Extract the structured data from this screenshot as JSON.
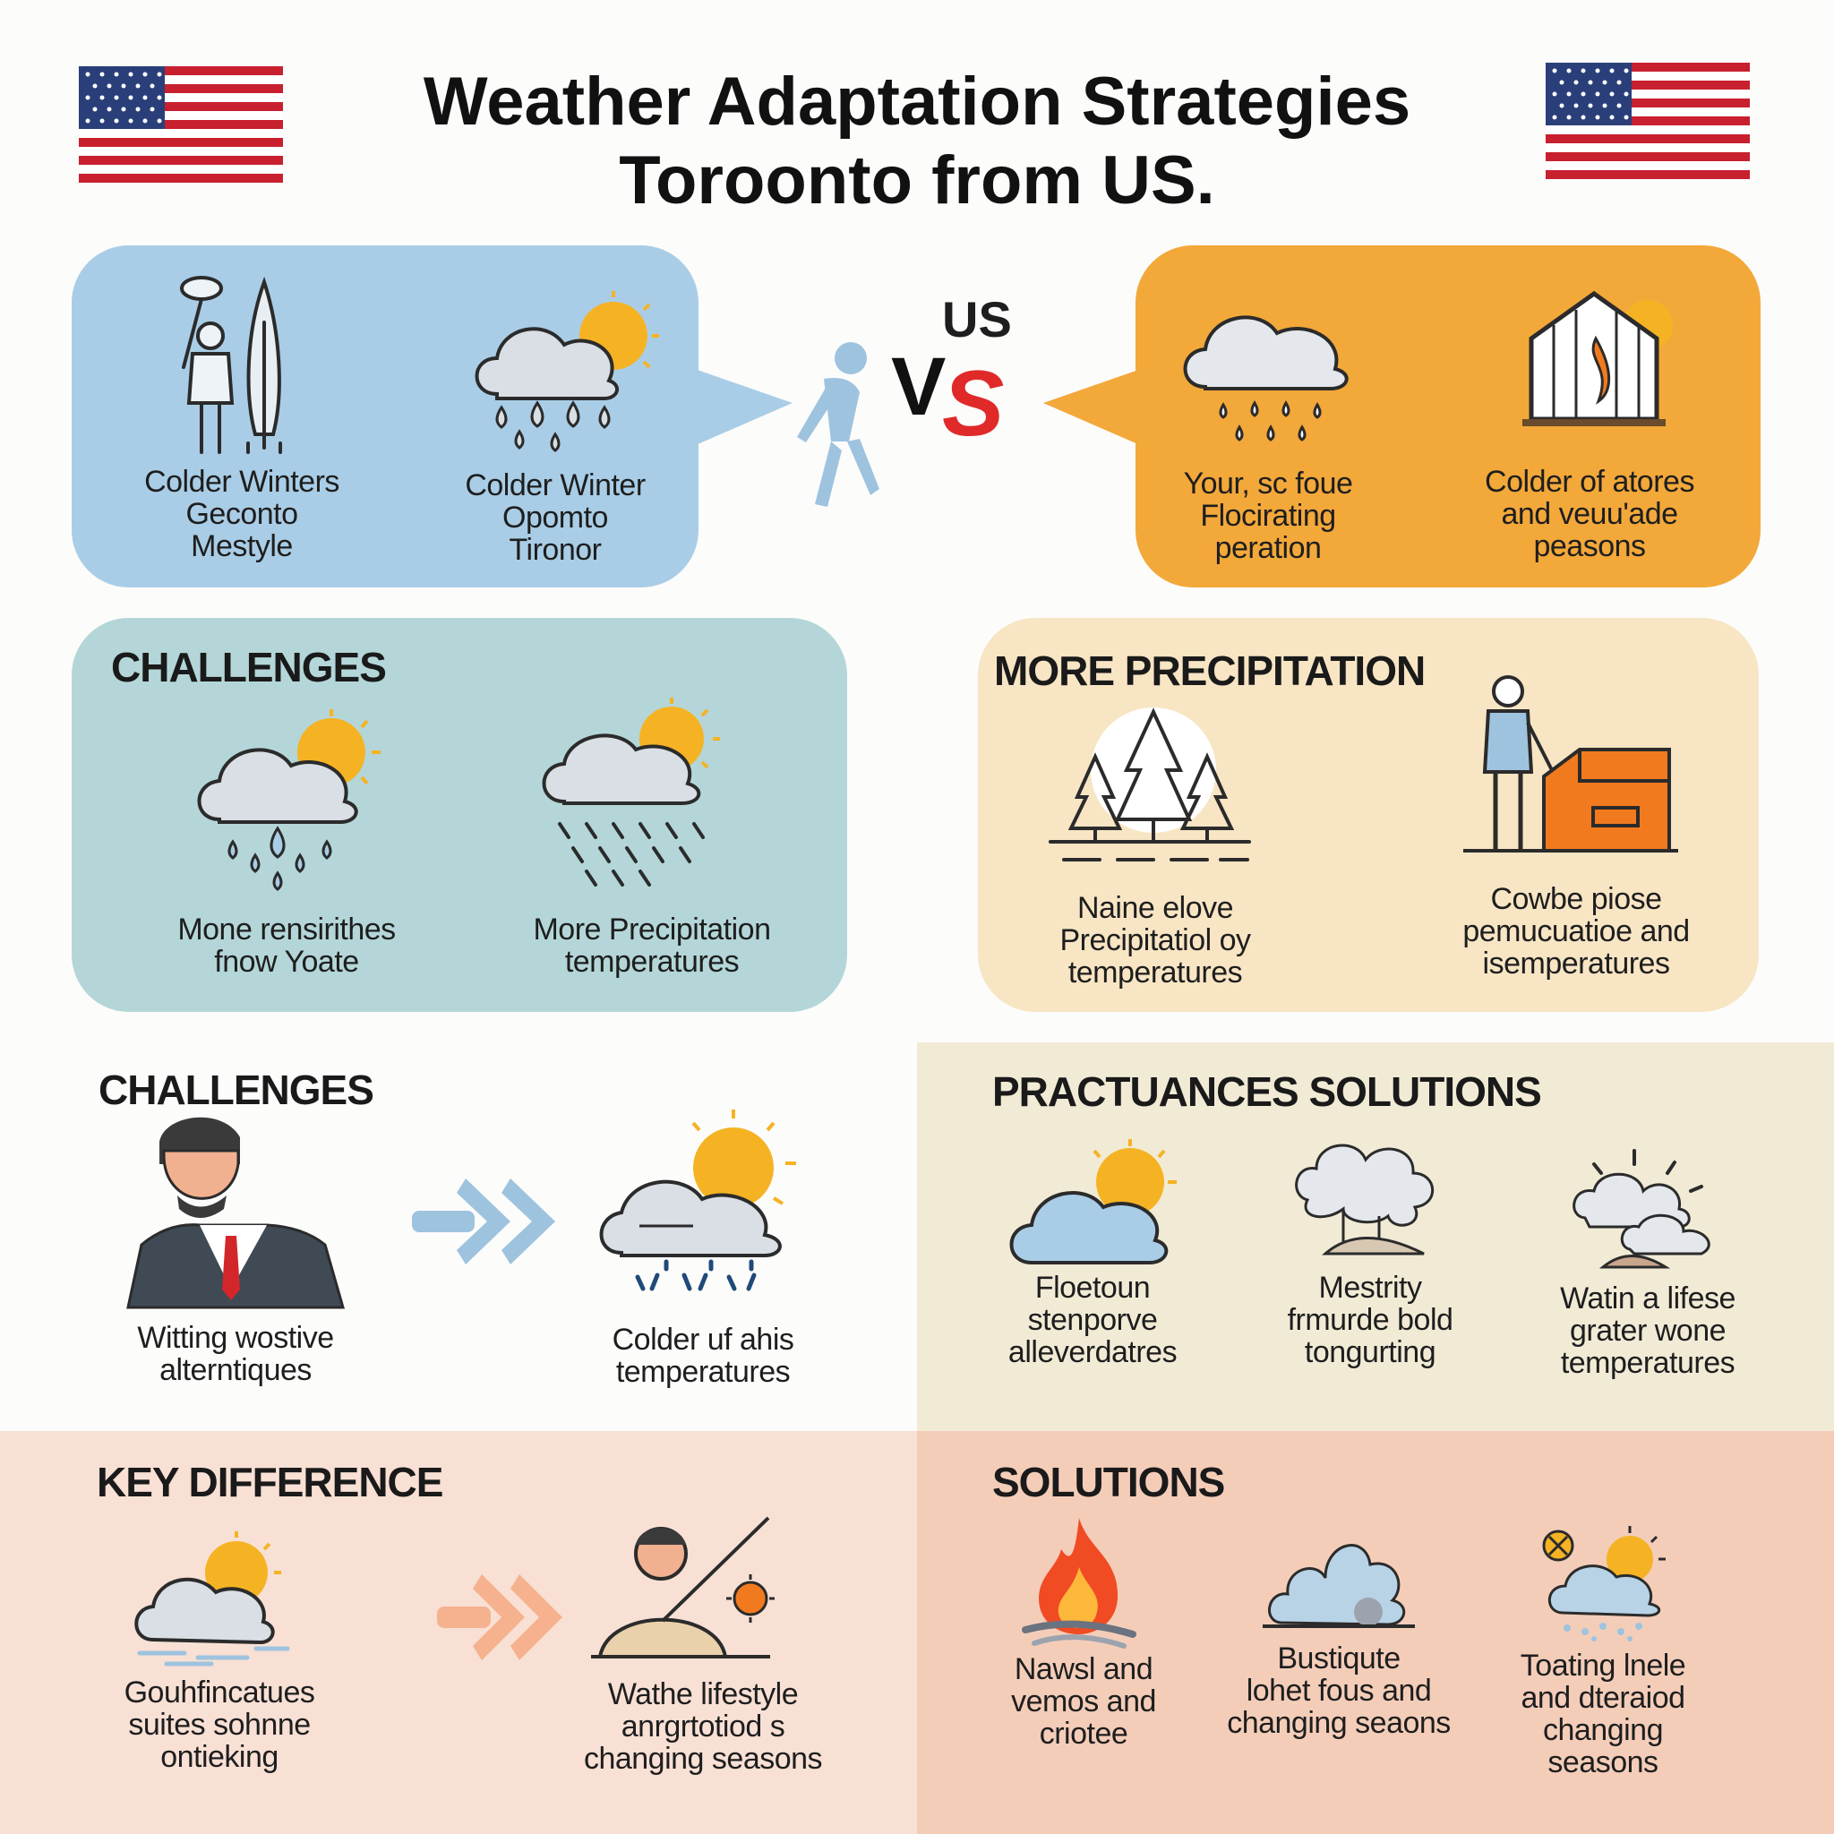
{
  "title": {
    "line1": "Weather Adaptation Strategies",
    "line2": "Toroonto from US."
  },
  "colors": {
    "blue_panel": "#a9cde6",
    "orange_panel": "#f3a83a",
    "teal_panel": "#b4d6d8",
    "cream_panel": "#f8e5c4",
    "beige_band": "#f1ebd6",
    "pink_left": "#f8e0d5",
    "pink_right": "#f4cdb9",
    "vs_red": "#e02a2a"
  },
  "header": {
    "left_flag": "us-flag-icon",
    "right_flag": "us-flag-icon"
  },
  "vs": {
    "label_us": "US",
    "label_v": "V",
    "label_s": "S"
  },
  "blue_panel": {
    "items": [
      {
        "icon": "person-umbrella-icon",
        "label": "Colder Winters\nGeconto\nMestyle"
      },
      {
        "icon": "cloud-rain-sun-icon",
        "label": "Colder Winter\nOpomto\nTironor"
      }
    ]
  },
  "orange_panel": {
    "items": [
      {
        "icon": "cloud-rain-icon",
        "label": "Your, sc foue\nFlocirating\nperation"
      },
      {
        "icon": "house-fire-icon",
        "label": "Colder of atores\nand veuu'ade\npeasons"
      }
    ]
  },
  "challenges_panel": {
    "heading": "CHALLENGES",
    "items": [
      {
        "icon": "cloud-sun-rain-icon",
        "label": "Mone rensirithes\nfnow Yoate"
      },
      {
        "icon": "cloud-sun-drizzle-icon",
        "label": "More Precipitation\ntemperatures"
      }
    ]
  },
  "precipitation_panel": {
    "heading": "MORE PRECIPITATION",
    "items": [
      {
        "icon": "pine-trees-icon",
        "label": "Naine elove\nPrecipitatiol oy\ntemperatures"
      },
      {
        "icon": "person-box-icon",
        "label": "Cowbe piose\npemucuatioe and\nisemperatures"
      }
    ]
  },
  "challenges_section": {
    "heading": "CHALLENGES",
    "items": [
      {
        "icon": "businessman-icon",
        "label": "Witting wostive\nalterntiques"
      },
      {
        "icon": "arrow-right-icon",
        "label": ""
      },
      {
        "icon": "cloud-sun-rain-icon",
        "label": "Colder uf ahis\ntemperatures"
      }
    ]
  },
  "practuances_section": {
    "heading": "PRACTUANCES SOLUTIONS",
    "items": [
      {
        "icon": "cloud-sun-icon",
        "label": "Floetoun\nstenporve\nalleverdatres"
      },
      {
        "icon": "tree-clouds-icon",
        "label": "Mestrity\nfrmurde bold\ntongurting"
      },
      {
        "icon": "clouds-sun-rays-icon",
        "label": "Watin a lifese\ngrater wone\ntemperatures"
      }
    ]
  },
  "key_difference_section": {
    "heading": "KEY DIFFERENCE",
    "items": [
      {
        "icon": "cloud-sun-wind-icon",
        "label": "Gouhfincatues\nsuites sohnne\nontieking"
      },
      {
        "icon": "arrow-right-icon",
        "label": ""
      },
      {
        "icon": "person-sun-icon",
        "label": "Wathe lifestyle\nanrgrtotiod s\nchanging seasons"
      }
    ]
  },
  "solutions_section": {
    "heading": "SOLUTIONS",
    "items": [
      {
        "icon": "fire-icon",
        "label": "Nawsl and\nvemos and\ncriotee"
      },
      {
        "icon": "cloud-pile-icon",
        "label": "Bustiqute\nlohet fous and\nchanging seaons"
      },
      {
        "icon": "cloud-sun-snow-icon",
        "label": "Toating lnele\nand dteraiod\nchanging\nseasons"
      }
    ]
  }
}
